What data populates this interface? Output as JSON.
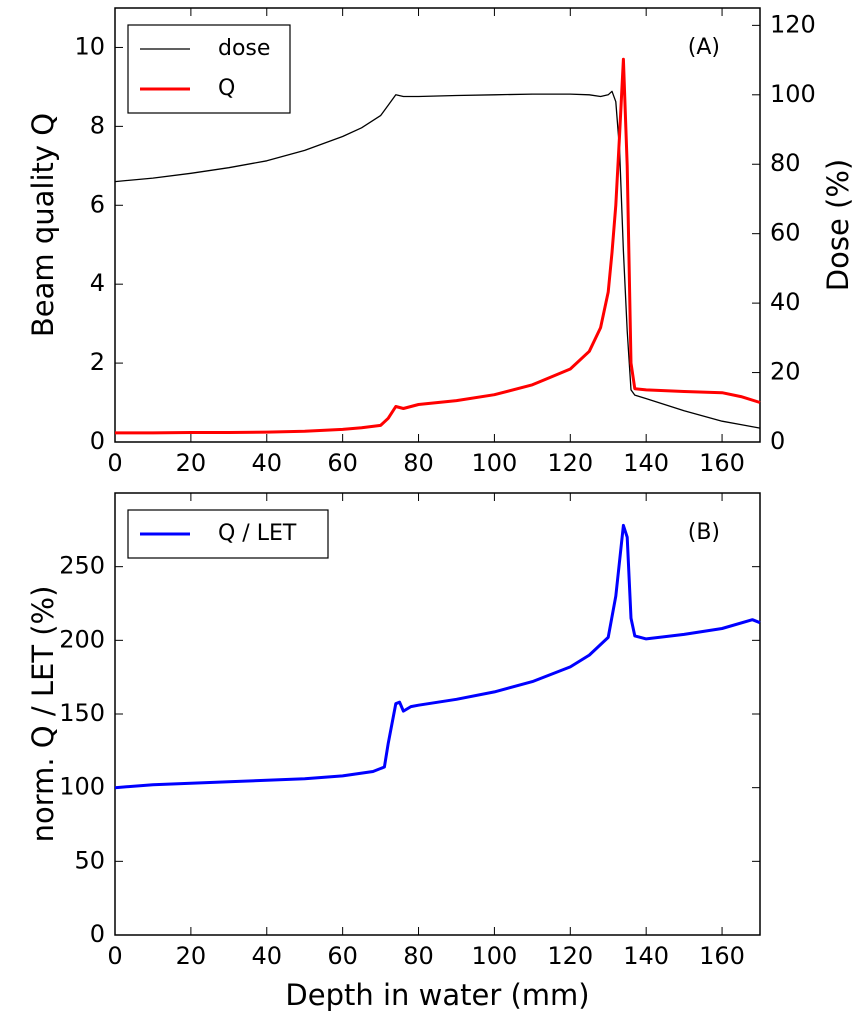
{
  "chart_data": [
    {
      "type": "line",
      "annotation": "(A)",
      "ylabel": "Beam quality Q",
      "y2label": "Dose (%)",
      "x": [
        0,
        10,
        20,
        30,
        40,
        50,
        60,
        65,
        70,
        72,
        74,
        76,
        80,
        90,
        100,
        110,
        120,
        125,
        128,
        130,
        131,
        132,
        133,
        134,
        135,
        136,
        137,
        140,
        150,
        160,
        165,
        170
      ],
      "series": [
        {
          "name": "dose",
          "color": "#000000",
          "axis": "y2",
          "values": [
            75,
            76,
            77.4,
            79,
            81,
            84,
            88,
            90.5,
            94,
            97,
            100,
            99.5,
            99.5,
            99.8,
            100,
            100.2,
            100.2,
            100,
            99.5,
            100,
            101,
            98,
            84,
            55,
            32,
            15,
            13.5,
            12.5,
            9,
            6,
            5,
            4
          ]
        },
        {
          "name": "Q",
          "color": "#ff0000",
          "values": [
            0.23,
            0.23,
            0.24,
            0.24,
            0.25,
            0.27,
            0.32,
            0.36,
            0.42,
            0.6,
            0.9,
            0.85,
            0.95,
            1.05,
            1.2,
            1.45,
            1.85,
            2.3,
            2.9,
            3.8,
            4.8,
            6,
            7.8,
            9.7,
            7,
            2,
            1.35,
            1.32,
            1.28,
            1.25,
            1.15,
            1.0
          ]
        }
      ],
      "xlim": [
        0,
        170
      ],
      "xticks": [
        0,
        20,
        40,
        60,
        80,
        100,
        120,
        140,
        160
      ],
      "ylim": [
        0,
        11
      ],
      "yticks": [
        0,
        2,
        4,
        6,
        8,
        10
      ],
      "y2lim": [
        0,
        125
      ],
      "y2ticks": [
        0,
        20,
        40,
        60,
        80,
        100,
        120
      ],
      "legend": "upper left"
    },
    {
      "type": "line",
      "annotation": "(B)",
      "ylabel": "norm. Q / LET (%)",
      "xlabel": "Depth in water (mm)",
      "x": [
        0,
        10,
        20,
        30,
        40,
        50,
        60,
        68,
        71,
        72,
        74,
        75,
        76,
        78,
        80,
        90,
        100,
        110,
        120,
        125,
        130,
        132,
        134,
        135,
        136,
        137,
        140,
        150,
        160,
        168,
        170
      ],
      "series": [
        {
          "name": "Q / LET",
          "color": "#0000ff",
          "values": [
            100,
            102,
            103,
            104,
            105,
            106,
            108,
            111,
            114,
            130,
            157,
            158,
            152,
            155,
            156,
            160,
            165,
            172,
            182,
            190,
            202,
            230,
            278,
            270,
            215,
            203,
            201,
            204,
            208,
            214,
            212
          ]
        }
      ],
      "xlim": [
        0,
        170
      ],
      "xticks": [
        0,
        20,
        40,
        60,
        80,
        100,
        120,
        140,
        160
      ],
      "ylim": [
        0,
        300
      ],
      "yticks": [
        0,
        50,
        100,
        150,
        200,
        250
      ],
      "legend": "upper left"
    }
  ]
}
